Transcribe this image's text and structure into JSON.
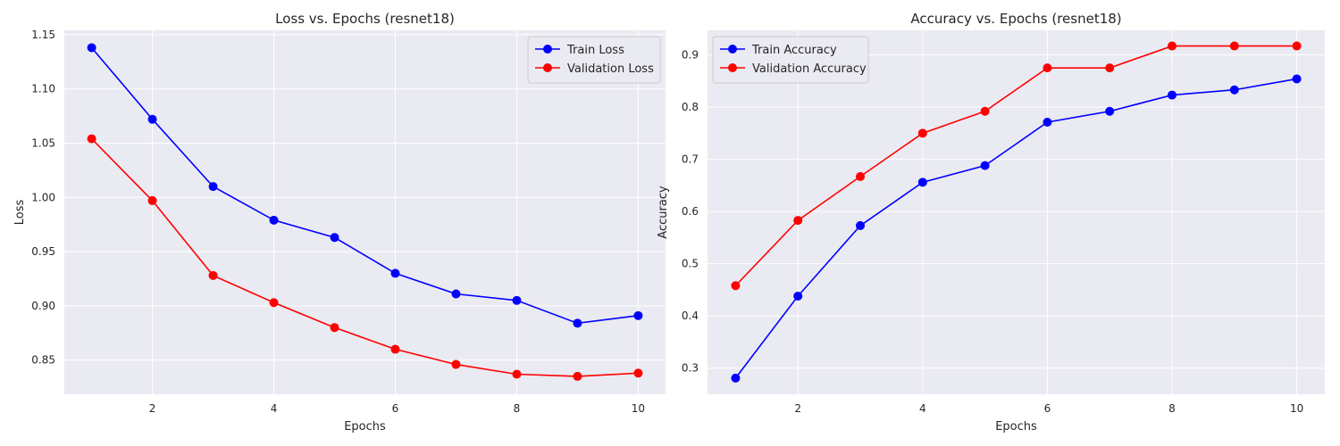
{
  "chart_data": [
    {
      "type": "line",
      "title": "Loss vs. Epochs (resnet18)",
      "xlabel": "Epochs",
      "ylabel": "Loss",
      "xlim": [
        0.55,
        10.45
      ],
      "ylim": [
        0.8185,
        1.154
      ],
      "xticks": [
        2,
        4,
        6,
        8,
        10
      ],
      "yticks": [
        0.85,
        0.9,
        0.95,
        1.0,
        1.05,
        1.1,
        1.15
      ],
      "ytick_decimals": 2,
      "grid": true,
      "legend_position": "top-right",
      "x": [
        1,
        2,
        3,
        4,
        5,
        6,
        7,
        8,
        9,
        10
      ],
      "series": [
        {
          "name": "Train Loss",
          "color": "#0000ff",
          "values": [
            1.138,
            1.072,
            1.01,
            0.979,
            0.963,
            0.93,
            0.911,
            0.905,
            0.884,
            0.891
          ]
        },
        {
          "name": "Validation Loss",
          "color": "#ff0000",
          "values": [
            1.054,
            0.997,
            0.928,
            0.903,
            0.88,
            0.86,
            0.846,
            0.837,
            0.835,
            0.838
          ]
        }
      ]
    },
    {
      "type": "line",
      "title": "Accuracy vs. Epochs (resnet18)",
      "xlabel": "Epochs",
      "ylabel": "Accuracy",
      "xlim": [
        0.55,
        10.45
      ],
      "ylim": [
        0.25,
        0.947
      ],
      "xticks": [
        2,
        4,
        6,
        8,
        10
      ],
      "yticks": [
        0.3,
        0.4,
        0.5,
        0.6,
        0.7,
        0.8,
        0.9
      ],
      "ytick_decimals": 1,
      "grid": true,
      "legend_position": "top-left",
      "x": [
        1,
        2,
        3,
        4,
        5,
        6,
        7,
        8,
        9,
        10
      ],
      "series": [
        {
          "name": "Train Accuracy",
          "color": "#0000ff",
          "values": [
            0.281,
            0.438,
            0.573,
            0.656,
            0.688,
            0.771,
            0.792,
            0.823,
            0.833,
            0.854
          ]
        },
        {
          "name": "Validation Accuracy",
          "color": "#ff0000",
          "values": [
            0.458,
            0.583,
            0.667,
            0.75,
            0.792,
            0.875,
            0.875,
            0.917,
            0.917,
            0.917
          ]
        }
      ]
    }
  ]
}
